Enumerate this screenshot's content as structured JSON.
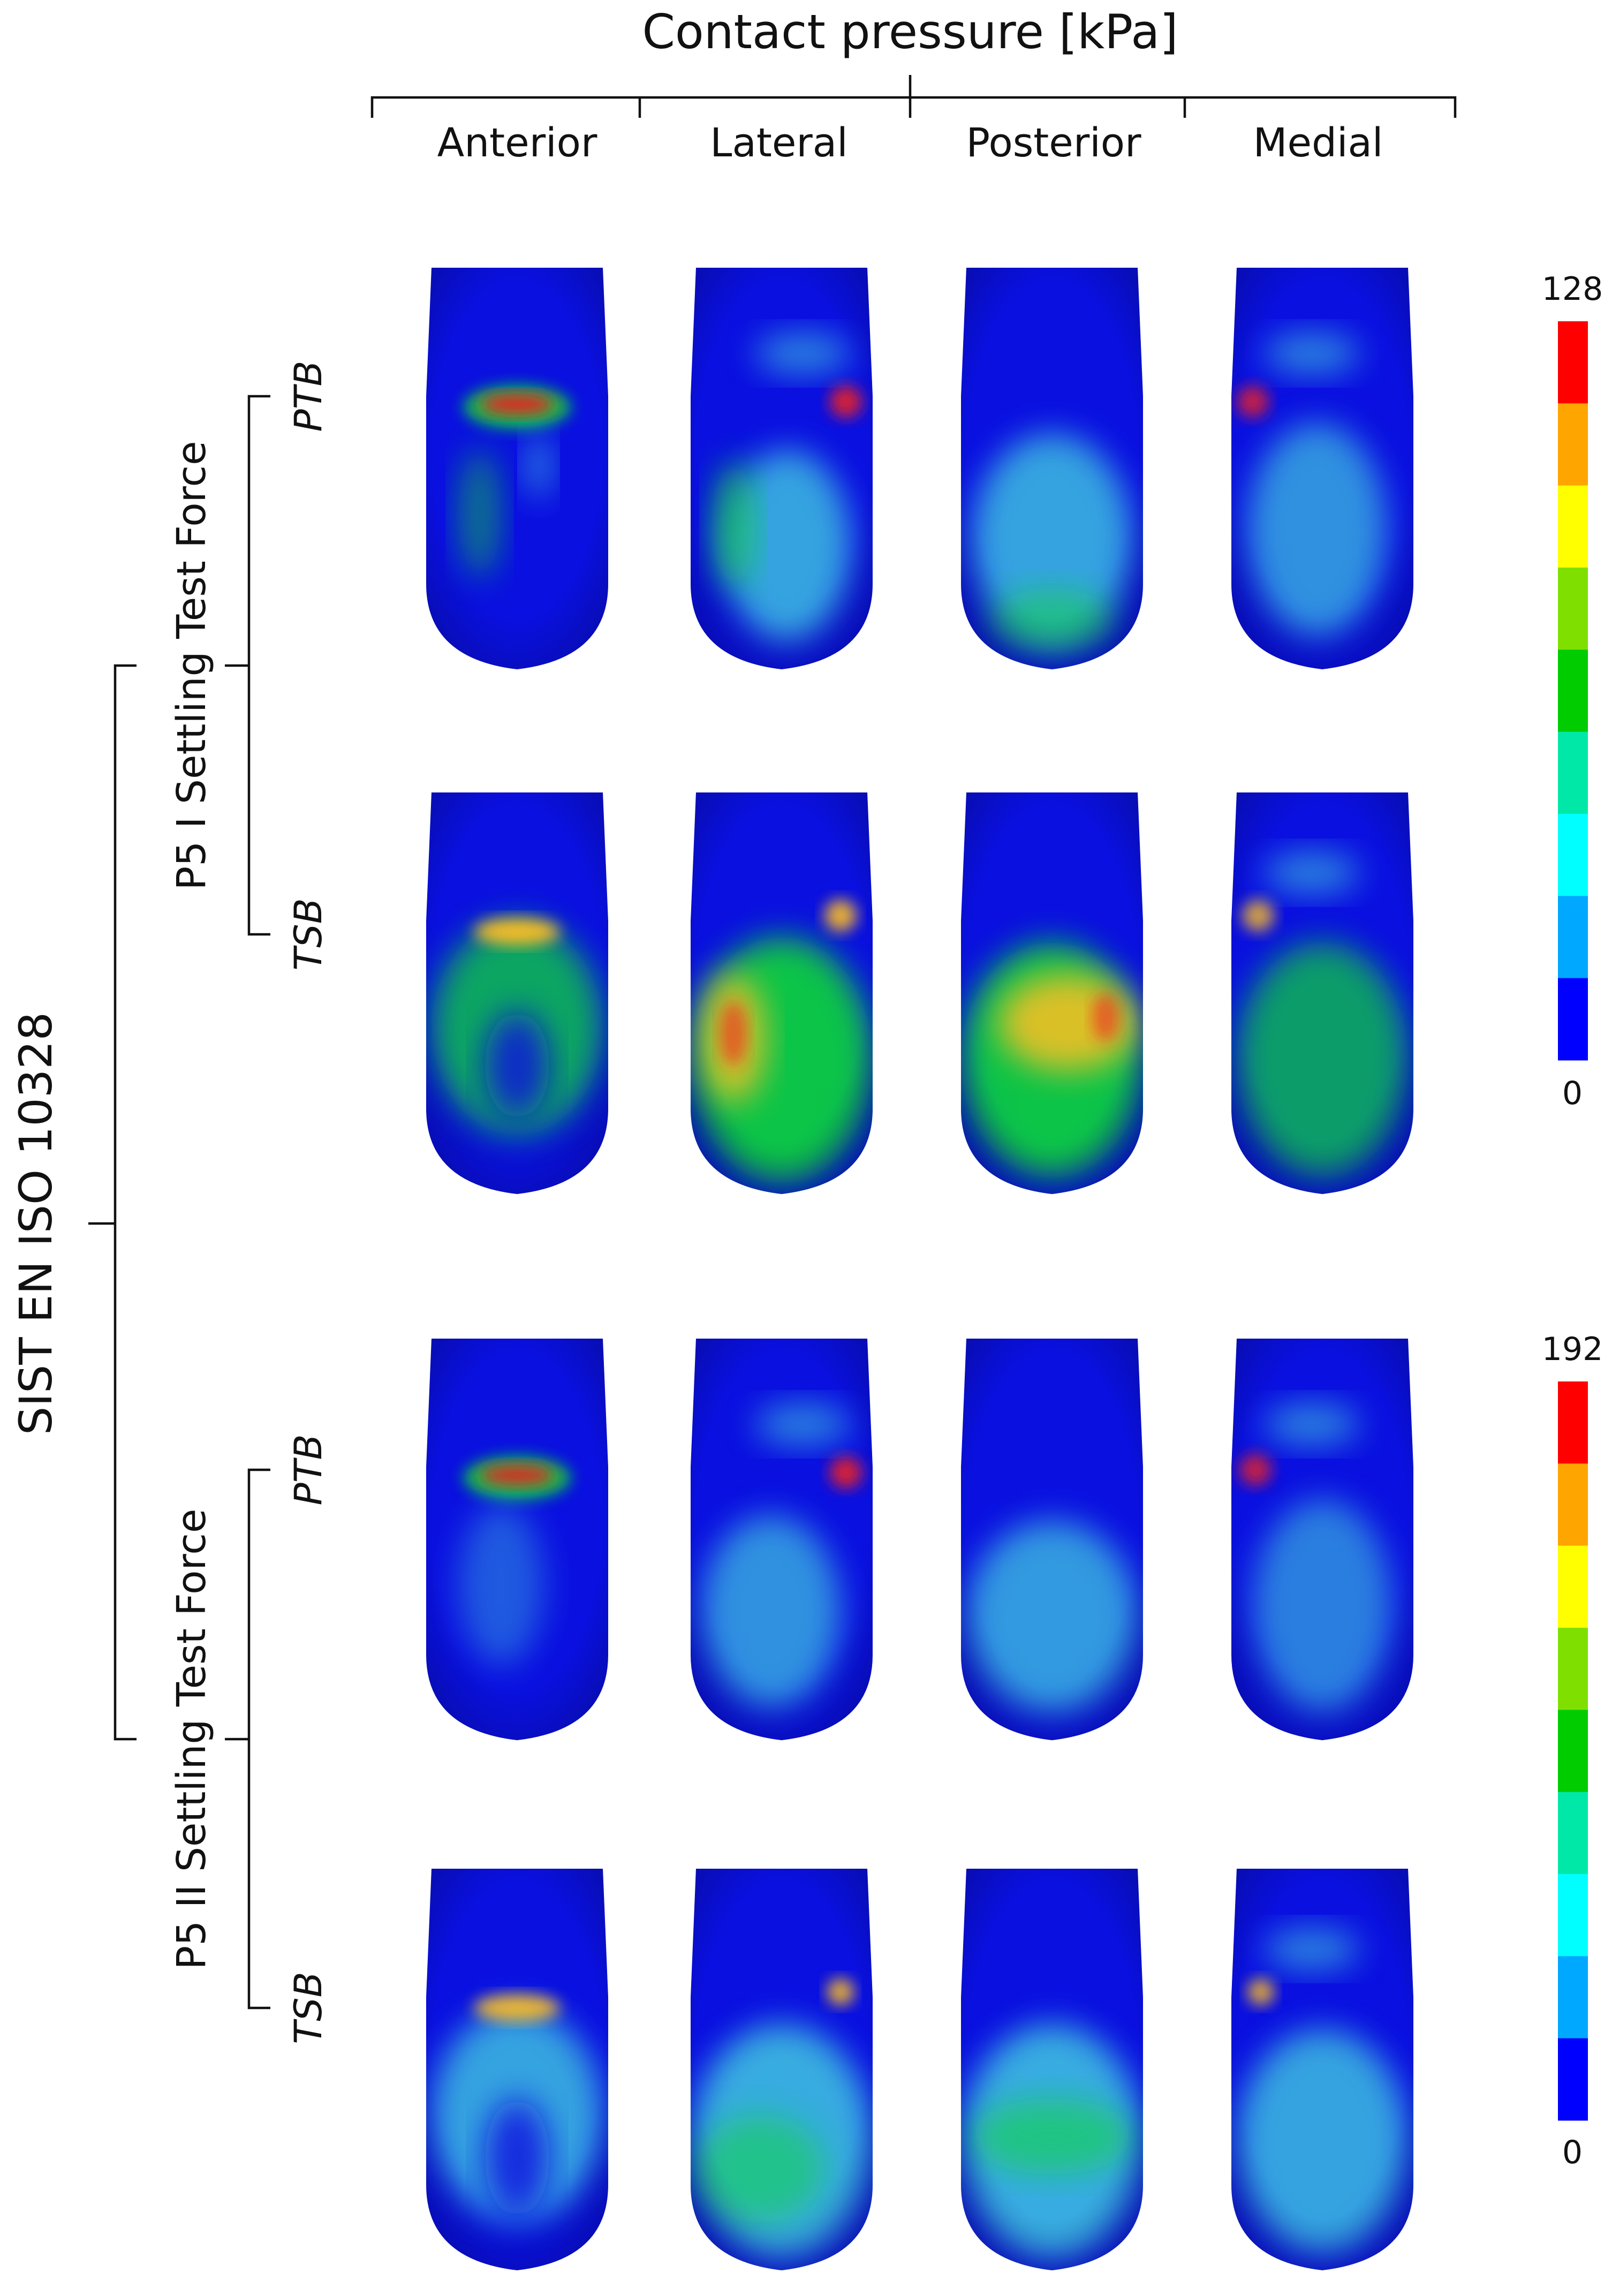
{
  "header": {
    "title": "Contact pressure [kPa]"
  },
  "views": [
    "Anterior",
    "Lateral",
    "Posterior",
    "Medial"
  ],
  "standard": "SIST EN ISO 10328",
  "groups": [
    {
      "label": "P5 I Settling Test Force",
      "liners": [
        "PTB",
        "TSB"
      ],
      "scale_max": "128",
      "scale_min": "0"
    },
    {
      "label": "P5 II Settling Test Force",
      "liners": [
        "PTB",
        "TSB"
      ],
      "scale_max": "192",
      "scale_min": "0"
    }
  ],
  "colorbar_colors": [
    "#ff0000",
    "#ffa500",
    "#ffff00",
    "#7fe000",
    "#00cc00",
    "#00e8a8",
    "#00ffff",
    "#00a8ff",
    "#0000ff"
  ],
  "stump_colors": {
    "base": "#0a10e0",
    "low": "#40c8e0",
    "mid": "#10d838",
    "high": "#ee2020",
    "warm": "#ffc020"
  }
}
